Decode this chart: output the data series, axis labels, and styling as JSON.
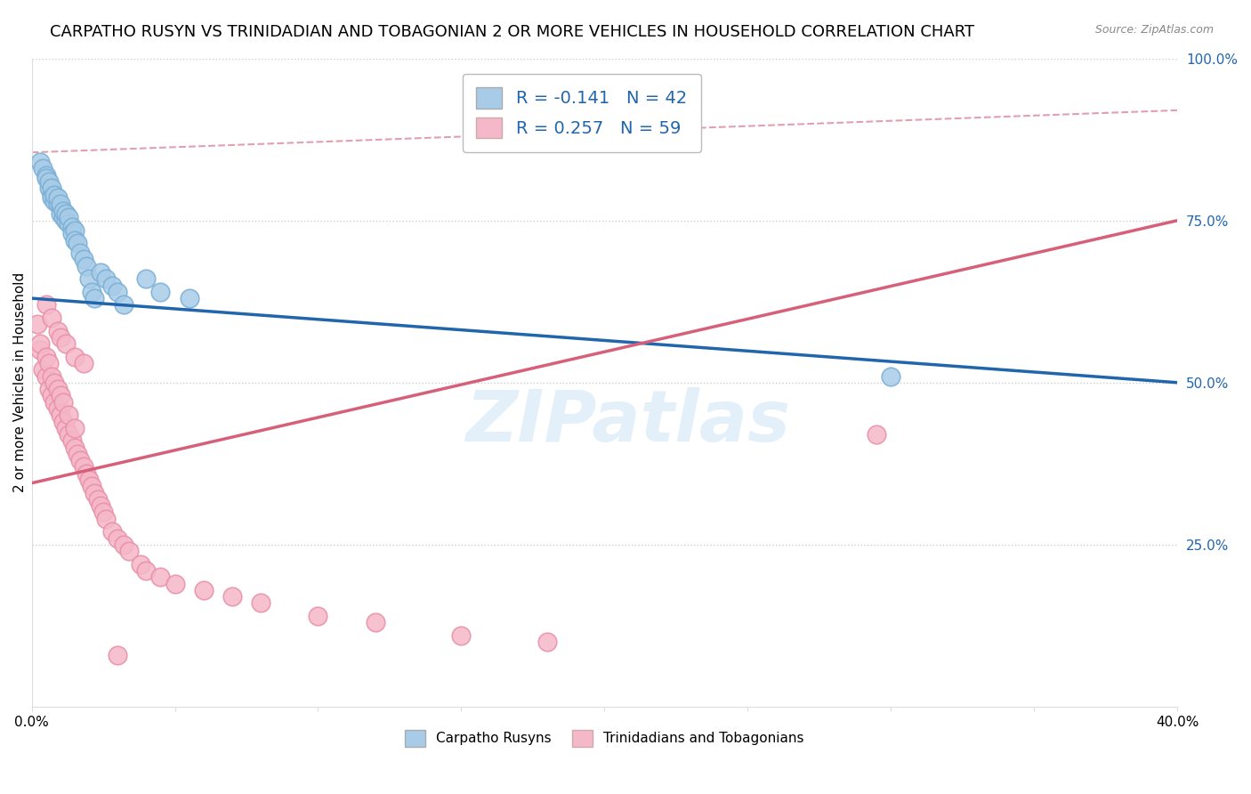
{
  "title": "CARPATHO RUSYN VS TRINIDADIAN AND TOBAGONIAN 2 OR MORE VEHICLES IN HOUSEHOLD CORRELATION CHART",
  "source": "Source: ZipAtlas.com",
  "ylabel": "2 or more Vehicles in Household",
  "xlim": [
    0.0,
    0.4
  ],
  "ylim": [
    0.0,
    1.0
  ],
  "xticks": [
    0.0,
    0.05,
    0.1,
    0.15,
    0.2,
    0.25,
    0.3,
    0.35,
    0.4
  ],
  "xtick_labels": [
    "0.0%",
    "",
    "",
    "",
    "",
    "",
    "",
    "",
    "40.0%"
  ],
  "yticks": [
    0.0,
    0.25,
    0.5,
    0.75,
    1.0
  ],
  "ytick_labels": [
    "",
    "25.0%",
    "50.0%",
    "75.0%",
    "100.0%"
  ],
  "blue_color": "#a8cce8",
  "pink_color": "#f5b8c8",
  "blue_edge_color": "#7aafd4",
  "pink_edge_color": "#e890a8",
  "blue_line_color": "#2166ac",
  "pink_line_color": "#d6607a",
  "dash_line_color": "#e0a0b0",
  "blue_R": -0.141,
  "blue_N": 42,
  "pink_R": 0.257,
  "pink_N": 59,
  "legend_label_blue": "Carpatho Rusyns",
  "legend_label_pink": "Trinidadians and Tobagonians",
  "blue_line_x": [
    0.0,
    0.4
  ],
  "blue_line_y": [
    0.63,
    0.5
  ],
  "pink_line_x": [
    0.0,
    0.4
  ],
  "pink_line_y": [
    0.345,
    0.75
  ],
  "dash_line_x": [
    0.0,
    0.4
  ],
  "dash_line_y": [
    0.855,
    0.92
  ],
  "blue_points_x": [
    0.003,
    0.004,
    0.005,
    0.005,
    0.006,
    0.006,
    0.007,
    0.007,
    0.007,
    0.008,
    0.008,
    0.009,
    0.009,
    0.01,
    0.01,
    0.01,
    0.011,
    0.011,
    0.012,
    0.012,
    0.013,
    0.013,
    0.014,
    0.014,
    0.015,
    0.015,
    0.016,
    0.017,
    0.018,
    0.019,
    0.02,
    0.021,
    0.022,
    0.024,
    0.026,
    0.028,
    0.03,
    0.032,
    0.04,
    0.045,
    0.055,
    0.3
  ],
  "blue_points_y": [
    0.84,
    0.83,
    0.82,
    0.815,
    0.8,
    0.81,
    0.79,
    0.8,
    0.785,
    0.78,
    0.79,
    0.775,
    0.785,
    0.77,
    0.76,
    0.775,
    0.755,
    0.765,
    0.75,
    0.76,
    0.745,
    0.755,
    0.74,
    0.73,
    0.735,
    0.72,
    0.715,
    0.7,
    0.69,
    0.68,
    0.66,
    0.64,
    0.63,
    0.67,
    0.66,
    0.65,
    0.64,
    0.62,
    0.66,
    0.64,
    0.63,
    0.51
  ],
  "pink_points_x": [
    0.002,
    0.003,
    0.003,
    0.004,
    0.005,
    0.005,
    0.006,
    0.006,
    0.007,
    0.007,
    0.008,
    0.008,
    0.009,
    0.009,
    0.01,
    0.01,
    0.011,
    0.011,
    0.012,
    0.013,
    0.013,
    0.014,
    0.015,
    0.015,
    0.016,
    0.017,
    0.018,
    0.019,
    0.02,
    0.021,
    0.022,
    0.023,
    0.024,
    0.025,
    0.026,
    0.028,
    0.03,
    0.032,
    0.034,
    0.038,
    0.04,
    0.045,
    0.05,
    0.06,
    0.07,
    0.08,
    0.1,
    0.12,
    0.15,
    0.18,
    0.005,
    0.007,
    0.009,
    0.01,
    0.012,
    0.015,
    0.018,
    0.295,
    0.03
  ],
  "pink_points_y": [
    0.59,
    0.55,
    0.56,
    0.52,
    0.51,
    0.54,
    0.49,
    0.53,
    0.48,
    0.51,
    0.47,
    0.5,
    0.46,
    0.49,
    0.45,
    0.48,
    0.44,
    0.47,
    0.43,
    0.42,
    0.45,
    0.41,
    0.4,
    0.43,
    0.39,
    0.38,
    0.37,
    0.36,
    0.35,
    0.34,
    0.33,
    0.32,
    0.31,
    0.3,
    0.29,
    0.27,
    0.26,
    0.25,
    0.24,
    0.22,
    0.21,
    0.2,
    0.19,
    0.18,
    0.17,
    0.16,
    0.14,
    0.13,
    0.11,
    0.1,
    0.62,
    0.6,
    0.58,
    0.57,
    0.56,
    0.54,
    0.53,
    0.42,
    0.08
  ],
  "watermark": "ZIPatlas",
  "background_color": "#ffffff",
  "grid_color": "#cccccc",
  "title_fontsize": 13,
  "axis_label_fontsize": 11,
  "tick_fontsize": 11,
  "legend_fontsize": 14
}
